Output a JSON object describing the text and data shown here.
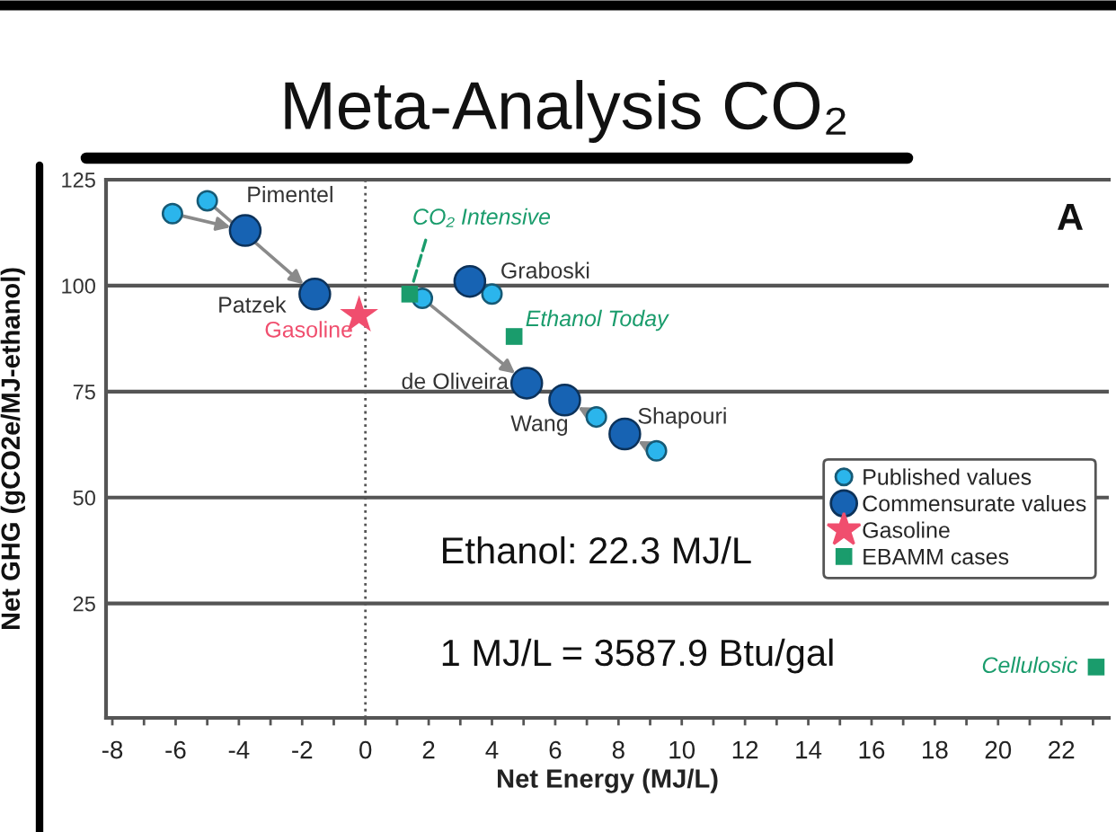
{
  "chart_data": {
    "type": "scatter",
    "title": "Meta-Analysis CO₂",
    "xlabel": "Net Energy (MJ/L)",
    "ylabel": "Net GHG (gCO2e/MJ-ethanol)",
    "series": [
      {
        "name": "Published values",
        "color": "#2bb5ec",
        "marker": "circle",
        "x": [
          -6.1,
          -5.0,
          4.0,
          1.8,
          7.3,
          9.2
        ],
        "values": [
          117,
          120,
          98,
          97,
          69,
          61
        ]
      },
      {
        "name": "Commensurate values",
        "color": "#1763b3",
        "marker": "circle",
        "x": [
          -3.8,
          -1.6,
          3.3,
          5.1,
          6.3,
          8.2
        ],
        "values": [
          113,
          98,
          101,
          77,
          73,
          65
        ]
      },
      {
        "name": "Gasoline",
        "color": "#f04e6e",
        "marker": "star",
        "x": [
          -0.2
        ],
        "values": [
          93
        ]
      },
      {
        "name": "EBAMM cases",
        "color": "#1a9c6c",
        "marker": "square",
        "x": [
          1.4,
          4.7,
          23.1
        ],
        "values": [
          98,
          88,
          10
        ]
      }
    ],
    "xlim": [
      -8.2,
      23.5
    ],
    "ylim": [
      -2,
      125
    ],
    "xticks": [
      -8,
      {
        "value": -7,
        "label": null
      },
      -6,
      {
        "value": -5,
        "label": null
      },
      -4,
      {
        "value": -3,
        "label": null
      },
      -2,
      {
        "value": -1,
        "label": null
      },
      0,
      {
        "value": 1,
        "label": null
      },
      2,
      {
        "value": 3,
        "label": null
      },
      4,
      {
        "value": 5,
        "label": null
      },
      6,
      {
        "value": 7,
        "label": null
      },
      8,
      {
        "value": 9,
        "label": null
      },
      10,
      {
        "value": 11,
        "label": null
      },
      12,
      {
        "value": 13,
        "label": null
      },
      14,
      {
        "value": 15,
        "label": null
      },
      16,
      {
        "value": 17,
        "label": null
      },
      18,
      {
        "value": 19,
        "label": null
      },
      20,
      {
        "value": 21,
        "label": null
      },
      22,
      {
        "value": 23,
        "label": null
      }
    ],
    "yticks": [
      25,
      50,
      75,
      100,
      125
    ],
    "grid": "y",
    "legend": "right",
    "ref_lines": [
      {
        "axis": "x",
        "value": 0,
        "line_style": "dotted",
        "color": "#555555"
      }
    ],
    "annotations": [
      "A",
      "Ethanol: 22.3 MJ/L",
      "1 MJ/L = 3587.9 Btu/gal",
      {
        "text": "Pimentel",
        "x": -3.8,
        "y": 113
      },
      {
        "text": "Patzek",
        "x": -1.6,
        "y": 98
      },
      {
        "text": "Gasoline",
        "x": -0.2,
        "y": 93
      },
      {
        "text": "CO₂ Intensive",
        "x": 1.4,
        "y": 98
      },
      {
        "text": "Graboski",
        "x": 3.3,
        "y": 101
      },
      {
        "text": "Ethanol Today",
        "x": 4.7,
        "y": 88
      },
      {
        "text": "de Oliveira",
        "x": 5.1,
        "y": 77
      },
      {
        "text": "Wang",
        "x": 6.3,
        "y": 73
      },
      {
        "text": "Shapouri",
        "x": 8.2,
        "y": 65
      },
      {
        "text": "Cellulosic",
        "x": 23.1,
        "y": 10
      }
    ]
  }
}
